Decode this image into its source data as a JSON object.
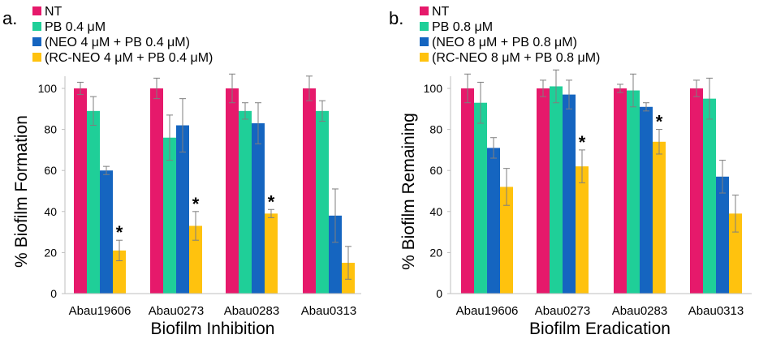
{
  "chart_data": [
    {
      "type": "bar",
      "panel_label": "a.",
      "xlabel": "Biofilm Inhibition",
      "ylabel": "% Biofilm Formation",
      "ylim": [
        0,
        100
      ],
      "yticks": [
        "0",
        "20",
        "40",
        "60",
        "80",
        "100"
      ],
      "grid": false,
      "legend_position": "top-left",
      "categories": [
        "Abau19606",
        "Abau0273",
        "Abau0283",
        "Abau0313"
      ],
      "series": [
        {
          "name": "NT",
          "color": "#e6196b",
          "values": [
            100,
            100,
            100,
            100
          ],
          "errors": [
            3,
            5,
            7,
            6
          ]
        },
        {
          "name": "PB 0.4 μM",
          "color": "#1fcf98",
          "values": [
            89,
            76,
            89,
            89
          ],
          "errors": [
            7,
            11,
            4,
            5
          ]
        },
        {
          "name": "(NEO 4 μM + PB 0.4 μM)",
          "color": "#1565c0",
          "values": [
            60,
            82,
            83,
            38
          ],
          "errors": [
            2,
            13,
            10,
            13
          ]
        },
        {
          "name": "(RC-NEO 4 μM + PB 0.4 μM)",
          "color": "#ffc20e",
          "values": [
            21,
            33,
            39,
            15
          ],
          "errors": [
            5,
            7,
            2,
            8
          ]
        }
      ],
      "annotations": [
        {
          "text": "*",
          "category": "Abau19606",
          "series": "(RC-NEO 4 μM + PB 0.4 μM)"
        },
        {
          "text": "*",
          "category": "Abau0273",
          "series": "(RC-NEO 4 μM + PB 0.4 μM)"
        },
        {
          "text": "*",
          "category": "Abau0283",
          "series": "(RC-NEO 4 μM + PB 0.4 μM)"
        }
      ]
    },
    {
      "type": "bar",
      "panel_label": "b.",
      "xlabel": "Biofilm Eradication",
      "ylabel": "% Biofilm Remaining",
      "ylim": [
        0,
        100
      ],
      "yticks": [
        "0",
        "20",
        "40",
        "60",
        "80",
        "100"
      ],
      "grid": false,
      "legend_position": "top-left",
      "categories": [
        "Abau19606",
        "Abau0273",
        "Abau0283",
        "Abau0313"
      ],
      "series": [
        {
          "name": "NT",
          "color": "#e6196b",
          "values": [
            100,
            100,
            100,
            100
          ],
          "errors": [
            7,
            4,
            2,
            4
          ]
        },
        {
          "name": "PB 0.8 μM",
          "color": "#1fcf98",
          "values": [
            93,
            101,
            99,
            95
          ],
          "errors": [
            10,
            8,
            8,
            10
          ]
        },
        {
          "name": "(NEO 8 μM + PB 0.8 μM)",
          "color": "#1565c0",
          "values": [
            71,
            97,
            91,
            57
          ],
          "errors": [
            5,
            7,
            2,
            8
          ]
        },
        {
          "name": "(RC-NEO 8 μM + PB 0.8 μM)",
          "color": "#ffc20e",
          "values": [
            52,
            62,
            74,
            39
          ],
          "errors": [
            9,
            8,
            6,
            9
          ]
        }
      ],
      "annotations": [
        {
          "text": "*",
          "category": "Abau0273",
          "series": "(RC-NEO 8 μM + PB 0.8 μM)"
        },
        {
          "text": "*",
          "category": "Abau0283",
          "series": "(RC-NEO 8 μM + PB 0.8 μM)"
        }
      ]
    }
  ]
}
